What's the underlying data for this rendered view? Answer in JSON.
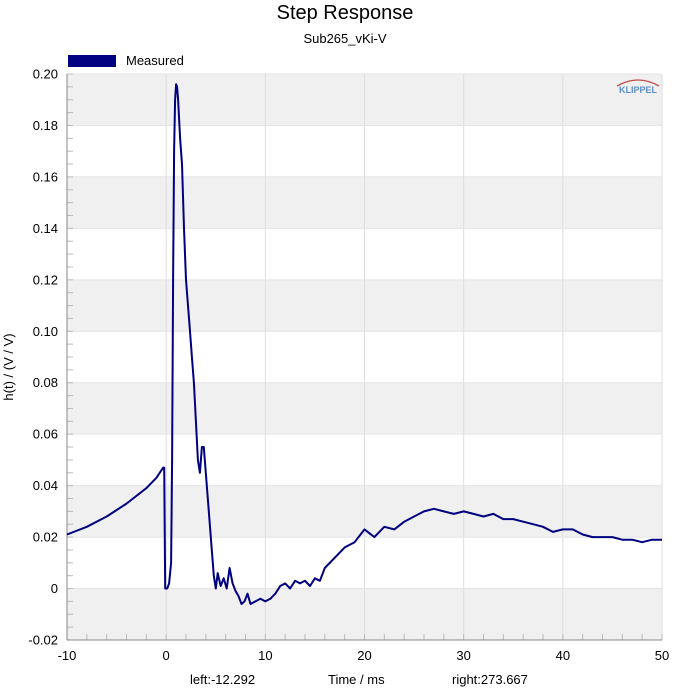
{
  "chart_data": {
    "type": "line",
    "title": "Step Response",
    "subtitle": "Sub265_vKi-V",
    "xlabel": "Time / ms",
    "ylabel": "h(t) / (V / V)",
    "xlim": [
      -10,
      50
    ],
    "ylim": [
      -0.02,
      0.2
    ],
    "xticks": [
      "-10",
      "0",
      "10",
      "20",
      "30",
      "40",
      "50"
    ],
    "yticks": [
      "-0.02",
      "0",
      "0.02",
      "0.04",
      "0.06",
      "0.08",
      "0.10",
      "0.12",
      "0.14",
      "0.16",
      "0.18",
      "0.20"
    ],
    "grid": true,
    "legend_position": "top-left",
    "logo": "KLIPPEL",
    "left_label": "left:-12.292",
    "right_label": "right:273.667",
    "series": [
      {
        "name": "Measured",
        "color": "#000080",
        "x": [
          -10,
          -8,
          -6,
          -4,
          -2,
          -1,
          -0.3,
          -0.2,
          -0.1,
          0.1,
          0.3,
          0.5,
          0.6,
          0.7,
          0.8,
          0.9,
          1.0,
          1.1,
          1.2,
          1.4,
          1.6,
          1.8,
          2.0,
          2.2,
          2.4,
          2.6,
          2.8,
          3.0,
          3.2,
          3.4,
          3.6,
          3.8,
          4.0,
          4.2,
          4.4,
          4.6,
          4.8,
          5.0,
          5.2,
          5.5,
          5.8,
          6.1,
          6.4,
          6.7,
          7.0,
          7.3,
          7.6,
          7.9,
          8.2,
          8.5,
          9.0,
          9.5,
          10.0,
          10.5,
          11.0,
          11.5,
          12.0,
          12.5,
          13.0,
          13.5,
          14.0,
          14.5,
          15.0,
          15.5,
          16.0,
          17.0,
          18.0,
          19.0,
          20.0,
          21.0,
          22.0,
          23.0,
          24.0,
          25.0,
          26.0,
          27.0,
          28.0,
          29.0,
          30.0,
          31.0,
          32.0,
          33.0,
          34.0,
          35.0,
          36.0,
          37.0,
          38.0,
          39.0,
          40.0,
          41.0,
          42.0,
          43.0,
          44.0,
          45.0,
          46.0,
          47.0,
          48.0,
          49.0,
          50.0
        ],
        "y": [
          0.021,
          0.024,
          0.028,
          0.033,
          0.039,
          0.043,
          0.047,
          0.047,
          0.0,
          0.0,
          0.002,
          0.01,
          0.05,
          0.12,
          0.17,
          0.19,
          0.196,
          0.195,
          0.19,
          0.175,
          0.165,
          0.14,
          0.12,
          0.11,
          0.1,
          0.09,
          0.08,
          0.065,
          0.05,
          0.045,
          0.055,
          0.055,
          0.045,
          0.035,
          0.025,
          0.015,
          0.005,
          0.0,
          0.006,
          0.001,
          0.004,
          0.0,
          0.008,
          0.002,
          -0.001,
          -0.003,
          -0.006,
          -0.005,
          -0.002,
          -0.006,
          -0.005,
          -0.004,
          -0.005,
          -0.004,
          -0.002,
          0.001,
          0.002,
          0.0,
          0.003,
          0.002,
          0.003,
          0.001,
          0.004,
          0.003,
          0.008,
          0.012,
          0.016,
          0.018,
          0.023,
          0.02,
          0.024,
          0.023,
          0.026,
          0.028,
          0.03,
          0.031,
          0.03,
          0.029,
          0.03,
          0.029,
          0.028,
          0.029,
          0.027,
          0.027,
          0.026,
          0.025,
          0.024,
          0.022,
          0.023,
          0.023,
          0.021,
          0.02,
          0.02,
          0.02,
          0.019,
          0.019,
          0.018,
          0.019,
          0.019
        ]
      }
    ]
  }
}
